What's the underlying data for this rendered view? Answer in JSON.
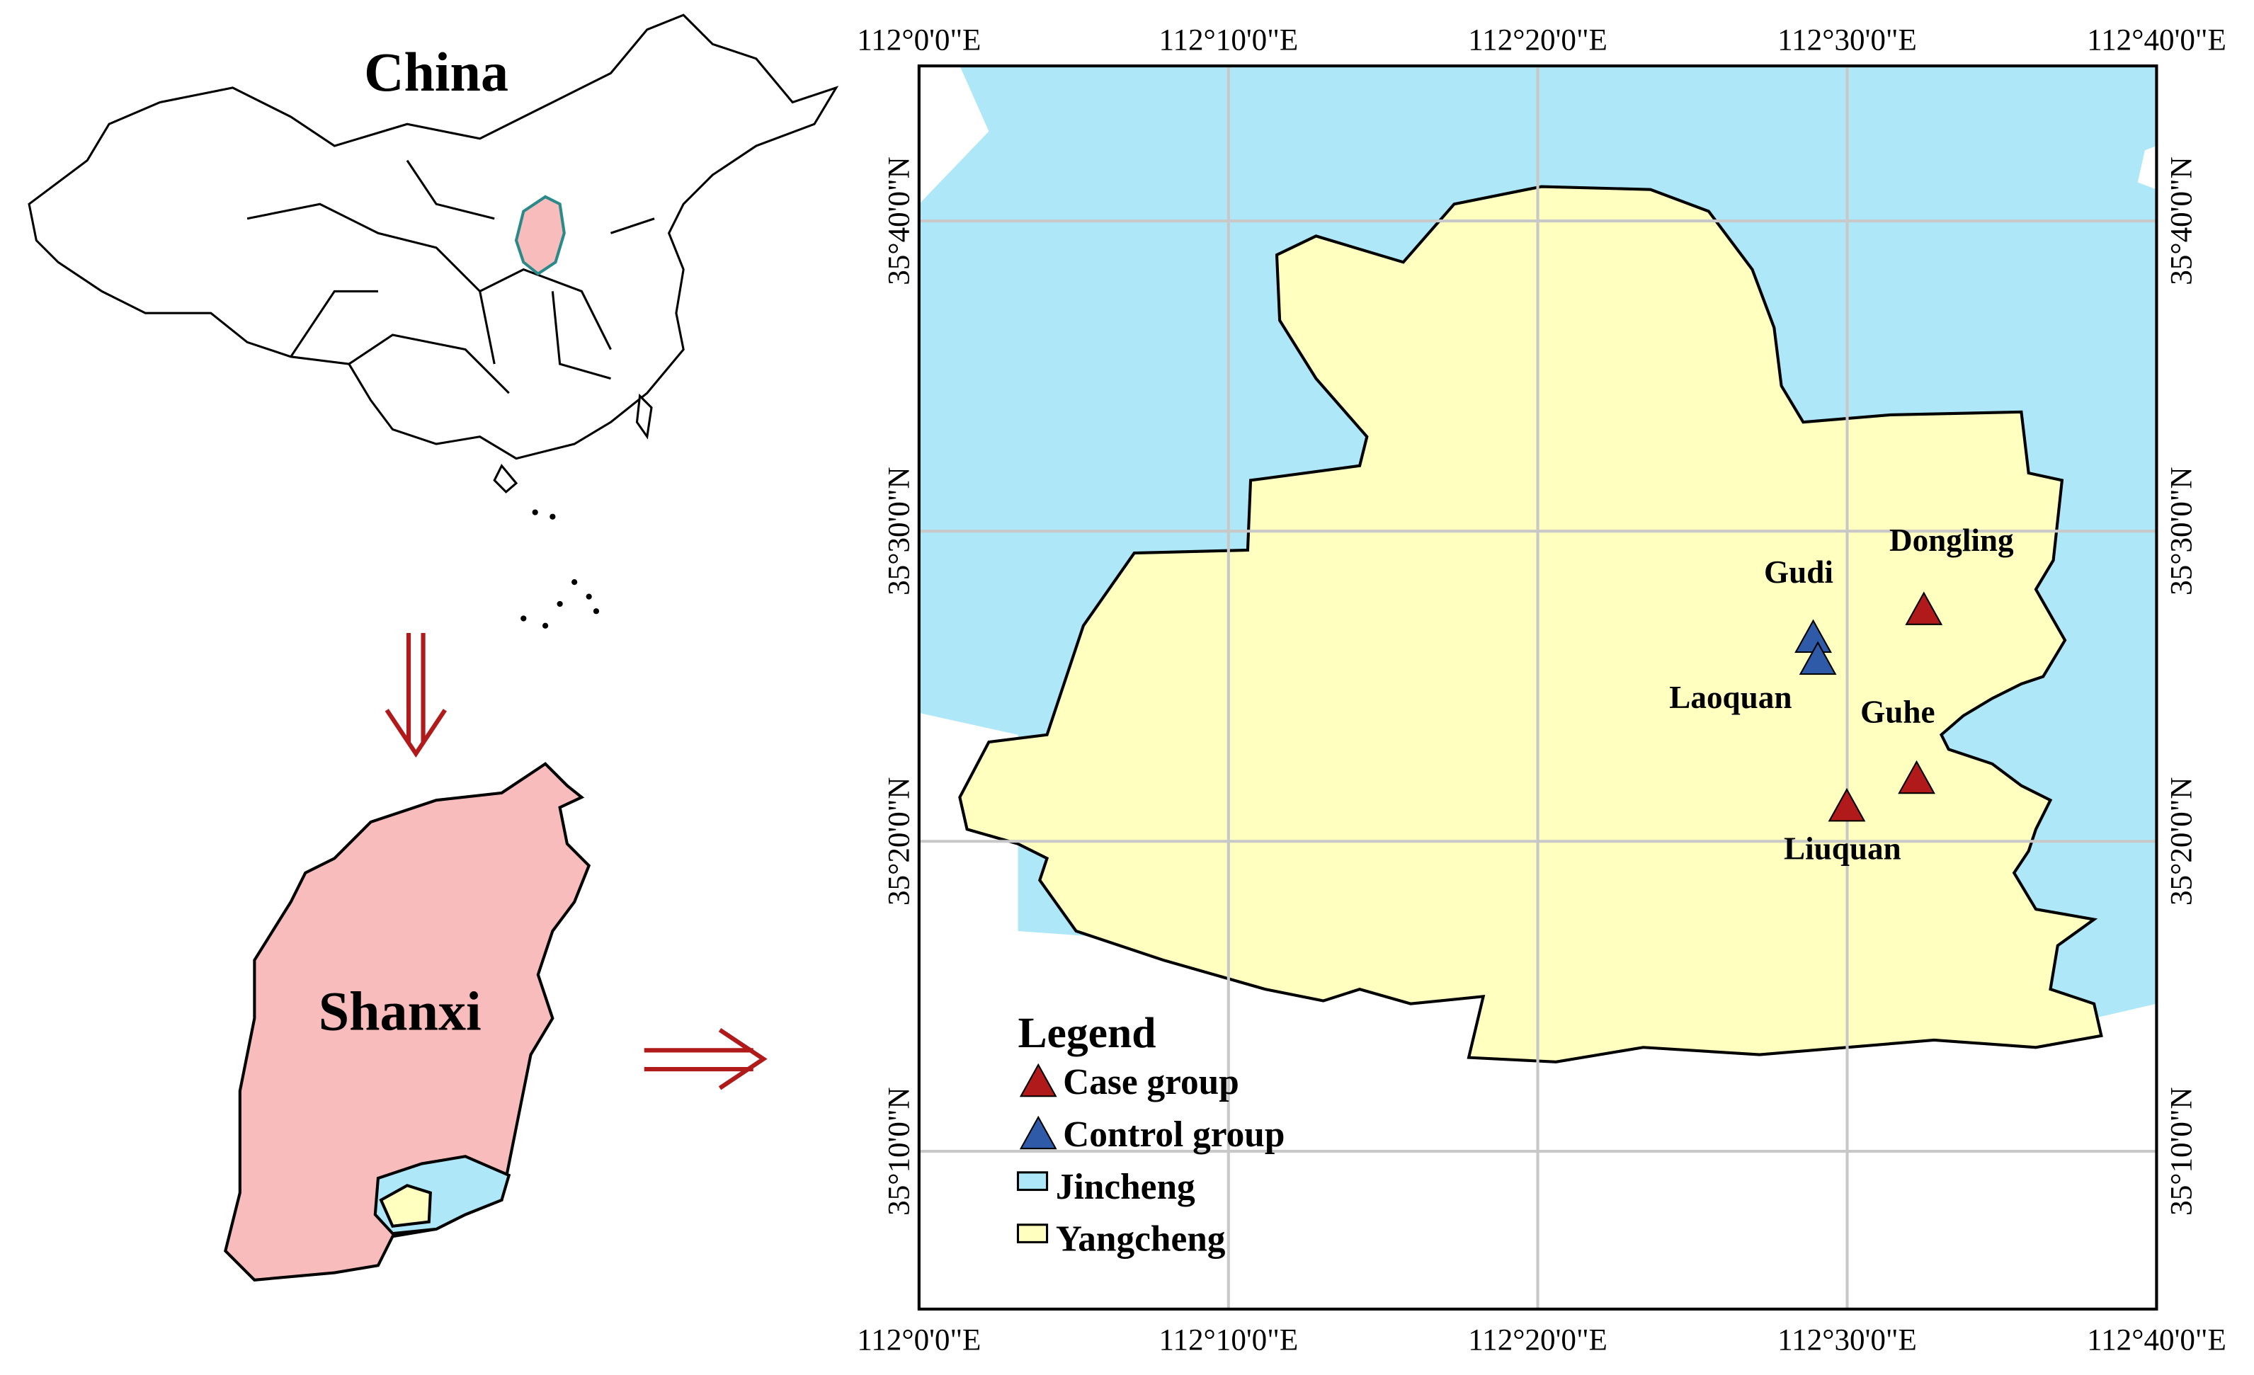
{
  "inset": {
    "country": "China",
    "province": "Shanxi"
  },
  "map": {
    "xlim": [
      112,
      112.6667
    ],
    "ylim": [
      35.0833,
      35.75
    ],
    "xticks": [
      {
        "value": 112,
        "label": "112°0'0\"E"
      },
      {
        "value": 112.1667,
        "label": "112°10'0\"E"
      },
      {
        "value": 112.3333,
        "label": "112°20'0\"E"
      },
      {
        "value": 112.5,
        "label": "112°30'0\"E"
      },
      {
        "value": 112.6667,
        "label": "112°40'0\"E"
      }
    ],
    "yticks": [
      {
        "value": 35.6667,
        "label": "35°40'0\"N"
      },
      {
        "value": 35.5,
        "label": "35°30'0\"N"
      },
      {
        "value": 35.3333,
        "label": "35°20'0\"N"
      },
      {
        "value": 35.1667,
        "label": "35°10'0\"N"
      }
    ],
    "series": [
      {
        "name": "Case group",
        "color": "#b11a1a",
        "sites": [
          {
            "name": "Dongling",
            "lon": 112.5413,
            "lat": 35.4574
          },
          {
            "name": "Guhe",
            "lon": 112.5374,
            "lat": 35.3667
          },
          {
            "name": "Liuquan",
            "lon": 112.4998,
            "lat": 35.3518
          }
        ]
      },
      {
        "name": "Control group",
        "color": "#2f5aa8",
        "sites": [
          {
            "name": "Gudi",
            "lon": 112.4817,
            "lat": 35.4425
          },
          {
            "name": "Laoquan",
            "lon": 112.4842,
            "lat": 35.4307
          }
        ]
      }
    ],
    "areas": [
      {
        "name": "Jincheng",
        "color": "#aee8f8"
      },
      {
        "name": "Yangcheng",
        "color": "#ffffc0"
      }
    ],
    "legend_title": "Legend"
  }
}
